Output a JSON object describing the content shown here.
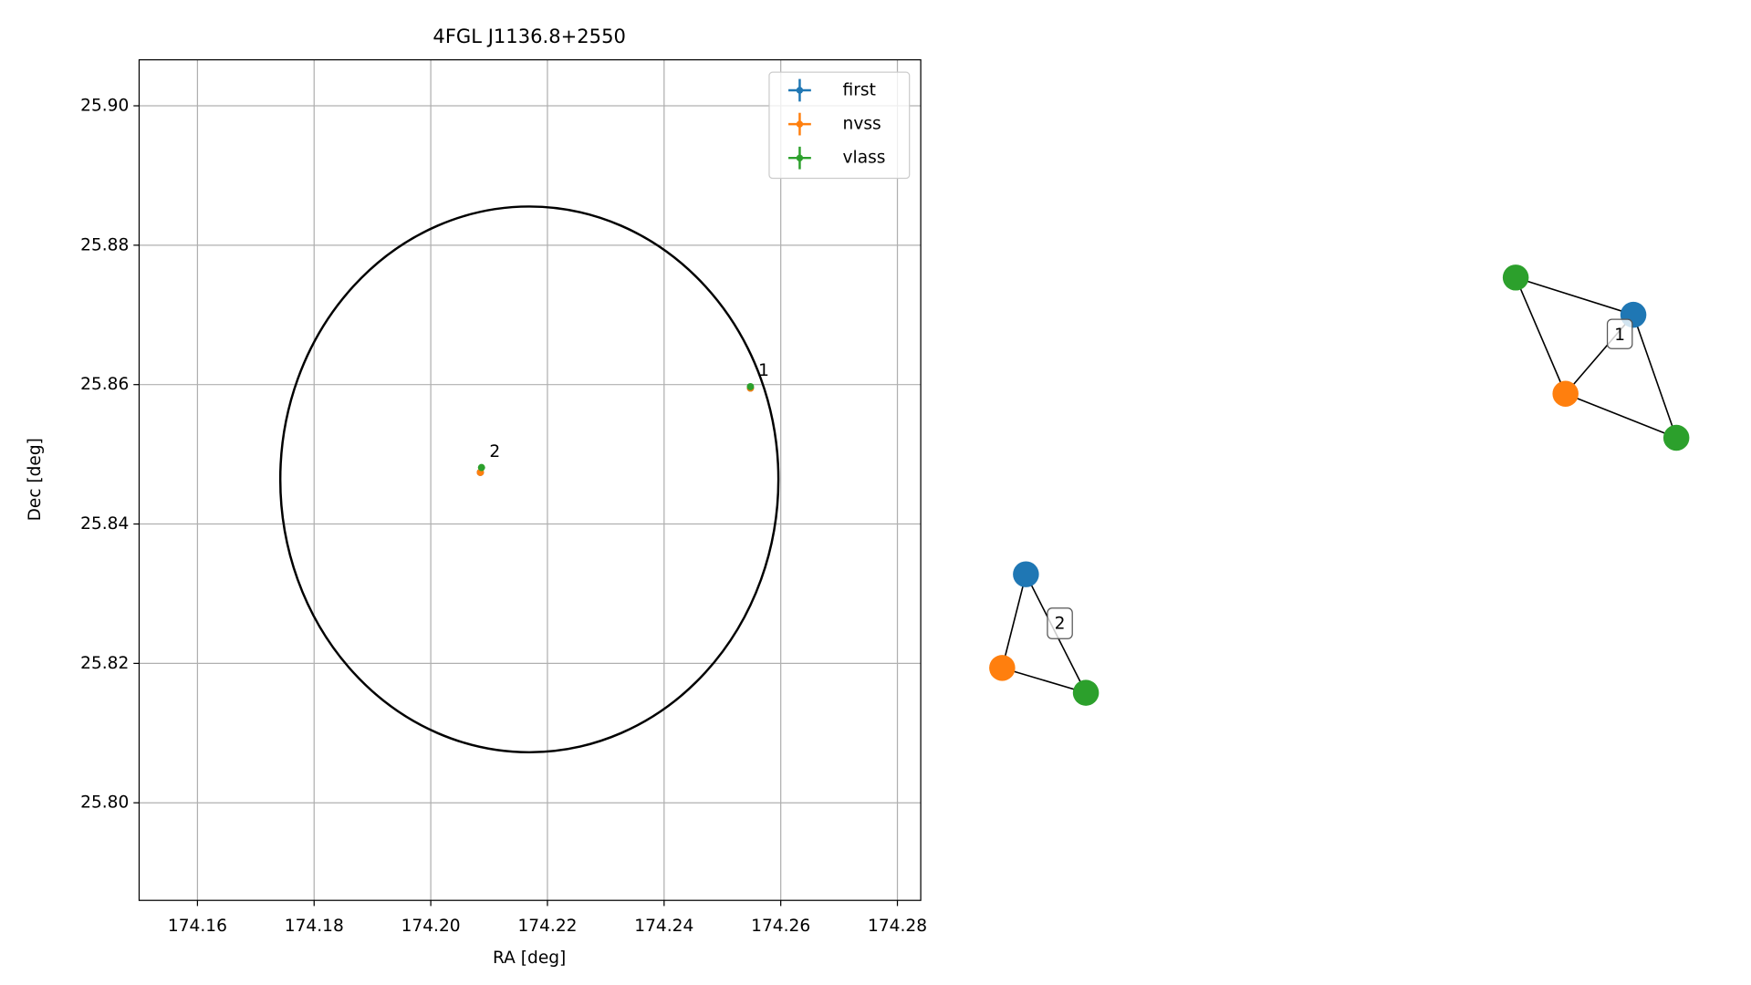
{
  "chart_data": {
    "type": "scatter",
    "title": "4FGL J1136.8+2550",
    "xlabel": "RA [deg]",
    "ylabel": "Dec [deg]",
    "xlim": [
      174.15,
      174.284
    ],
    "ylim": [
      25.786,
      25.9066
    ],
    "xticks": [
      174.16,
      174.18,
      {
        "value": 174.2,
        "label": "174.20"
      },
      174.22,
      174.24,
      174.26,
      174.28
    ],
    "yticks": [
      {
        "value": 25.8,
        "label": "25.80"
      },
      25.82,
      25.84,
      25.86,
      25.88,
      {
        "value": 25.9,
        "label": "25.90"
      }
    ],
    "grid": true,
    "legend": "upper right",
    "series": [
      {
        "name": "first",
        "color": "#1f77b4",
        "x": [
          174.2548,
          174.2085
        ],
        "y": [
          25.8595,
          25.8474
        ]
      },
      {
        "name": "nvss",
        "color": "#ff7f0e",
        "x": [
          174.2548,
          174.2085
        ],
        "y": [
          25.8595,
          25.8474
        ]
      },
      {
        "name": "vlass",
        "color": "#2ca02c",
        "x": [
          174.2548,
          174.2087
        ],
        "y": [
          25.8597,
          25.8481
        ]
      }
    ],
    "point_labels": [
      "1",
      "2"
    ],
    "ellipse": {
      "center": [
        174.2169,
        25.8464
      ],
      "width": 0.0854,
      "height": 0.0783,
      "color": "#000000"
    }
  },
  "graph": {
    "edge_labels": [
      "1",
      "2"
    ]
  }
}
